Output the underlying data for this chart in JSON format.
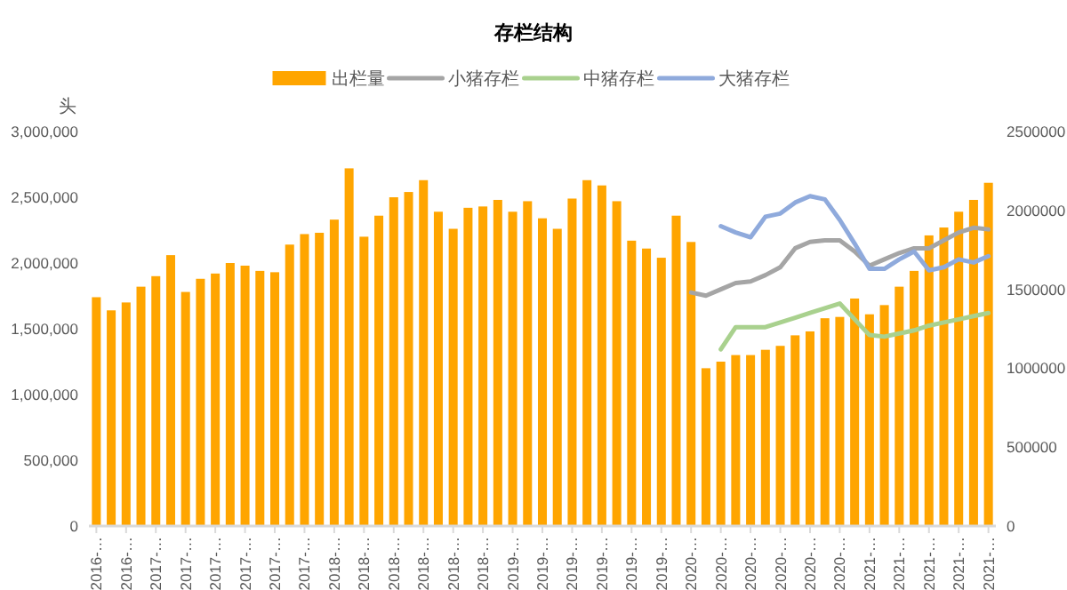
{
  "chart_data": {
    "type": "bar",
    "title": "存栏结构",
    "ylabel": "头",
    "legend": "top",
    "categories": [
      "2016-…",
      null,
      "2016-…",
      null,
      "2017-…",
      null,
      "2017-…",
      null,
      "2017-…",
      null,
      "2017-…",
      null,
      "2017-…",
      null,
      "2017-…",
      null,
      "2018-…",
      null,
      "2018-…",
      null,
      "2018-…",
      null,
      "2018-…",
      null,
      "2018-…",
      null,
      "2018-…",
      null,
      "2019-…",
      null,
      "2019-…",
      null,
      "2019-…",
      null,
      "2019-…",
      null,
      "2019-…",
      null,
      "2019-…",
      null,
      "2020-…",
      null,
      "2020-…",
      null,
      "2020-…",
      null,
      "2020-…",
      null,
      "2020-…",
      null,
      "2020-…",
      null,
      "2021-…",
      null,
      "2021-…",
      null,
      "2021-…",
      null,
      "2021-…",
      null,
      "2021-…"
    ],
    "ylim": [
      0,
      3000000
    ],
    "yticks": [
      {
        "value": 0,
        "label": "0"
      },
      {
        "value": 500000,
        "label": "500,000"
      },
      {
        "value": 1000000,
        "label": "1,000,000"
      },
      {
        "value": 1500000,
        "label": "1,500,000"
      },
      {
        "value": 2000000,
        "label": "2,000,000"
      },
      {
        "value": 2500000,
        "label": "2,500,000"
      },
      {
        "value": 3000000,
        "label": "3,000,000"
      }
    ],
    "y2lim": [
      0,
      2500000
    ],
    "y2ticks": [
      0,
      500000,
      1000000,
      1500000,
      2000000,
      2500000
    ],
    "series": [
      {
        "name": "出栏量",
        "color": "#ffa500",
        "values": [
          1740000,
          1640000,
          1700000,
          1820000,
          1900000,
          2060000,
          1780000,
          1880000,
          1920000,
          2000000,
          1980000,
          1940000,
          1930000,
          2140000,
          2220000,
          2230000,
          2330000,
          2720000,
          2200000,
          2360000,
          2500000,
          2540000,
          2630000,
          2390000,
          2260000,
          2420000,
          2430000,
          2480000,
          2390000,
          2470000,
          2340000,
          2260000,
          2490000,
          2630000,
          2590000,
          2470000,
          2170000,
          2110000,
          2040000,
          2360000,
          2160000,
          1200000,
          1250000,
          1300000,
          1300000,
          1340000,
          1370000,
          1450000,
          1480000,
          1580000,
          1590000,
          1730000,
          1610000,
          1680000,
          1820000,
          1940000,
          2210000,
          2270000,
          2390000,
          2480000,
          2610000
        ]
      },
      {
        "name": "小猪存栏",
        "type": "line",
        "axis": "y2",
        "color": "#a5a5a5",
        "values": [
          null,
          null,
          null,
          null,
          null,
          null,
          null,
          null,
          null,
          null,
          null,
          null,
          null,
          null,
          null,
          null,
          null,
          null,
          null,
          null,
          null,
          null,
          null,
          null,
          null,
          null,
          null,
          null,
          null,
          null,
          null,
          null,
          null,
          null,
          null,
          null,
          null,
          null,
          null,
          null,
          1480000,
          1460000,
          1500000,
          1540000,
          1550000,
          1590000,
          1640000,
          1760000,
          1800000,
          1810000,
          1810000,
          1740000,
          1650000,
          1690000,
          1730000,
          1760000,
          1760000,
          1810000,
          1860000,
          1890000,
          1880000
        ]
      },
      {
        "name": "中猪存栏",
        "type": "line",
        "axis": "y2",
        "color": "#a9d18e",
        "values": [
          null,
          null,
          null,
          null,
          null,
          null,
          null,
          null,
          null,
          null,
          null,
          null,
          null,
          null,
          null,
          null,
          null,
          null,
          null,
          null,
          null,
          null,
          null,
          null,
          null,
          null,
          null,
          null,
          null,
          null,
          null,
          null,
          null,
          null,
          null,
          null,
          null,
          null,
          null,
          null,
          null,
          null,
          1120000,
          1260000,
          1260000,
          1260000,
          1290000,
          1320000,
          1350000,
          1380000,
          1410000,
          1310000,
          1210000,
          1200000,
          1220000,
          1240000,
          1270000,
          1290000,
          1310000,
          1330000,
          1350000
        ]
      },
      {
        "name": "大猪存栏",
        "type": "line",
        "axis": "y2",
        "color": "#8faadc",
        "values": [
          null,
          null,
          null,
          null,
          null,
          null,
          null,
          null,
          null,
          null,
          null,
          null,
          null,
          null,
          null,
          null,
          null,
          null,
          null,
          null,
          null,
          null,
          null,
          null,
          null,
          null,
          null,
          null,
          null,
          null,
          null,
          null,
          null,
          null,
          null,
          null,
          null,
          null,
          null,
          null,
          null,
          null,
          1900000,
          1860000,
          1830000,
          1960000,
          1980000,
          2050000,
          2090000,
          2070000,
          1940000,
          1790000,
          1630000,
          1630000,
          1690000,
          1740000,
          1620000,
          1640000,
          1690000,
          1670000,
          1710000
        ]
      }
    ]
  }
}
